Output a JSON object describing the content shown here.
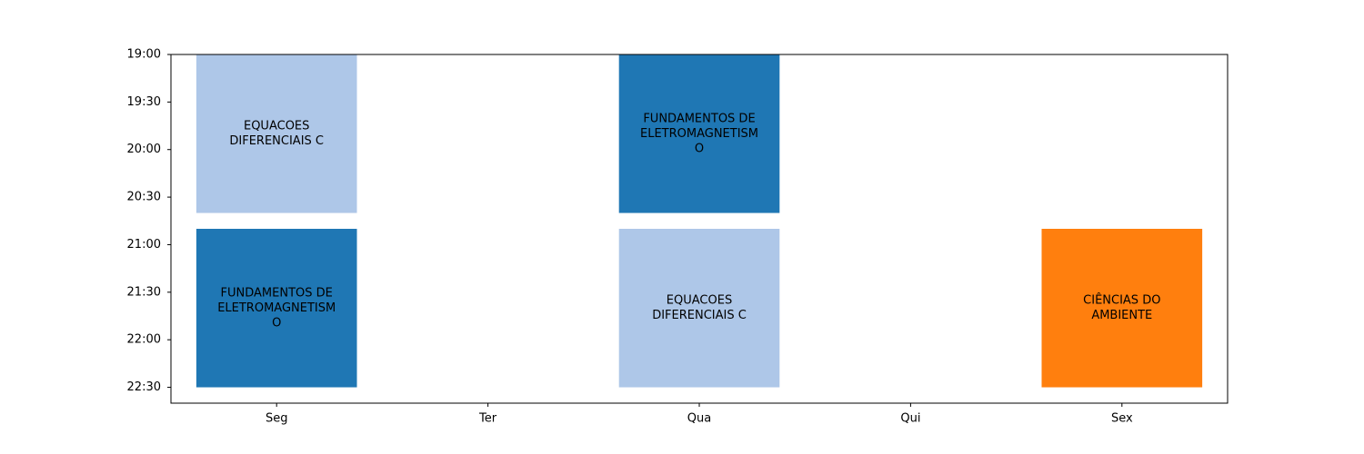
{
  "chart_data": {
    "type": "timetable",
    "title": "",
    "xlabel": "",
    "ylabel": "",
    "grid": false,
    "legend": "none",
    "days": [
      "Seg",
      "Ter",
      "Qua",
      "Qui",
      "Sex"
    ],
    "y_ticks": [
      "19:00",
      "19:30",
      "20:00",
      "20:30",
      "21:00",
      "21:30",
      "22:00",
      "22:30"
    ],
    "y_range": [
      "19:00",
      "22:40"
    ],
    "y_inverted": true,
    "blocks": [
      {
        "day": "Seg",
        "start": "19:00",
        "end": "20:40",
        "label": [
          "EQUACOES",
          "DIFERENCIAIS C"
        ],
        "color": "#aec7e8"
      },
      {
        "day": "Seg",
        "start": "20:50",
        "end": "22:30",
        "label": [
          "FUNDAMENTOS DE",
          "ELETROMAGNETISM",
          "O"
        ],
        "color": "#1f77b4"
      },
      {
        "day": "Qua",
        "start": "19:00",
        "end": "20:40",
        "label": [
          "FUNDAMENTOS DE",
          "ELETROMAGNETISM",
          "O"
        ],
        "color": "#1f77b4"
      },
      {
        "day": "Qua",
        "start": "20:50",
        "end": "22:30",
        "label": [
          "EQUACOES",
          "DIFERENCIAIS C"
        ],
        "color": "#aec7e8"
      },
      {
        "day": "Sex",
        "start": "20:50",
        "end": "22:30",
        "label": [
          "CIÊNCIAS DO",
          "AMBIENTE"
        ],
        "color": "#ff7f0e"
      }
    ]
  }
}
